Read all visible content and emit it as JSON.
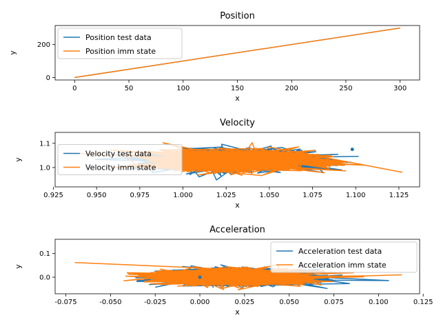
{
  "chart_data": [
    {
      "type": "line",
      "title": "Position",
      "xlabel": "x",
      "ylabel": "y",
      "xlim": [
        -18,
        318
      ],
      "ylim": [
        -15,
        315
      ],
      "xticks": [
        0,
        50,
        100,
        150,
        200,
        250,
        300
      ],
      "yticks": [
        0,
        200
      ],
      "legend_position": "upper-left",
      "series": [
        {
          "name": "Position test data",
          "color": "#1f77b4",
          "x": [
            0,
            300
          ],
          "y": [
            0,
            300
          ]
        },
        {
          "name": "Position imm state",
          "color": "#ff7f0e",
          "x": [
            0,
            300
          ],
          "y": [
            0,
            300
          ]
        }
      ]
    },
    {
      "type": "line",
      "title": "Velocity",
      "xlabel": "x",
      "ylabel": "y",
      "xlim": [
        0.926,
        1.137
      ],
      "ylim": [
        0.92,
        1.145
      ],
      "xticks": [
        "0.925",
        "0.950",
        "0.975",
        "1.000",
        "1.025",
        "1.050",
        "1.075",
        "1.100",
        "1.125"
      ],
      "yticks": [
        "1.0",
        "1.1"
      ],
      "legend_position": "center-left",
      "cloud": {
        "x_center": 1.032,
        "y_center": 1.03,
        "x_spread": 0.044,
        "y_spread": 0.045,
        "n_points": 1400
      },
      "series": [
        {
          "name": "Velocity test data",
          "color": "#1f77b4",
          "x": [
            1.098
          ],
          "y": [
            1.075
          ]
        },
        {
          "name": "Velocity imm state",
          "color": "#ff7f0e",
          "x": [
            0.932,
            1.127
          ],
          "y": [
            1.06,
            0.98
          ]
        }
      ]
    },
    {
      "type": "line",
      "title": "Acceleration",
      "xlabel": "x",
      "ylabel": "y",
      "xlim": [
        -0.081,
        0.123
      ],
      "ylim": [
        -0.07,
        0.16
      ],
      "xticks": [
        "-0.075",
        "-0.050",
        "-0.025",
        "0.000",
        "0.025",
        "0.050",
        "0.075",
        "0.100",
        "0.125"
      ],
      "yticks": [
        "0.0",
        "0.1"
      ],
      "legend_position": "upper-right",
      "cloud": {
        "x_center": 0.02,
        "y_center": 0.0,
        "x_spread": 0.04,
        "y_spread": 0.035,
        "n_points": 1400
      },
      "series": [
        {
          "name": "Acceleration test data",
          "color": "#1f77b4",
          "x": [
            0.0
          ],
          "y": [
            0.0
          ]
        },
        {
          "name": "Acceleration imm state",
          "color": "#ff7f0e",
          "x": [
            -0.07,
            0.113
          ],
          "y": [
            0.062,
            0.01
          ]
        }
      ]
    }
  ]
}
